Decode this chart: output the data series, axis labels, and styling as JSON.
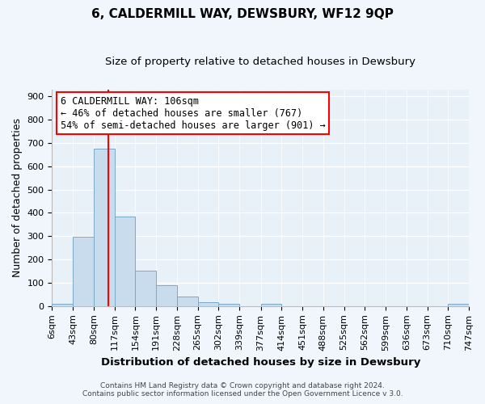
{
  "title": "6, CALDERMILL WAY, DEWSBURY, WF12 9QP",
  "subtitle": "Size of property relative to detached houses in Dewsbury",
  "xlabel": "Distribution of detached houses by size in Dewsbury",
  "ylabel": "Number of detached properties",
  "bar_color": "#c8dcee",
  "bar_edge_color": "#7aaac8",
  "background_color": "#e8f0f8",
  "fig_background_color": "#f0f6fc",
  "grid_color": "#ffffff",
  "vline_x": 106,
  "vline_color": "red",
  "bin_edges": [
    6,
    43,
    80,
    117,
    154,
    191,
    228,
    265,
    302,
    339,
    377,
    414,
    451,
    488,
    525,
    562,
    599,
    636,
    673,
    710,
    747
  ],
  "bin_labels": [
    "6sqm",
    "43sqm",
    "80sqm",
    "117sqm",
    "154sqm",
    "191sqm",
    "228sqm",
    "265sqm",
    "302sqm",
    "339sqm",
    "377sqm",
    "414sqm",
    "451sqm",
    "488sqm",
    "525sqm",
    "562sqm",
    "599sqm",
    "636sqm",
    "673sqm",
    "710sqm",
    "747sqm"
  ],
  "bar_heights": [
    10,
    297,
    675,
    383,
    153,
    88,
    40,
    15,
    10,
    0,
    10,
    0,
    0,
    0,
    0,
    0,
    0,
    0,
    0,
    10
  ],
  "ylim": [
    0,
    930
  ],
  "yticks": [
    0,
    100,
    200,
    300,
    400,
    500,
    600,
    700,
    800,
    900
  ],
  "ann_line1": "6 CALDERMILL WAY: 106sqm",
  "ann_line2": "← 46% of detached houses are smaller (767)",
  "ann_line3": "54% of semi-detached houses are larger (901) →",
  "footer_line1": "Contains HM Land Registry data © Crown copyright and database right 2024.",
  "footer_line2": "Contains public sector information licensed under the Open Government Licence v 3.0.",
  "title_fontsize": 11,
  "subtitle_fontsize": 9.5,
  "axis_label_fontsize": 9,
  "tick_fontsize": 8,
  "annotation_fontsize": 8.5,
  "footer_fontsize": 6.5
}
